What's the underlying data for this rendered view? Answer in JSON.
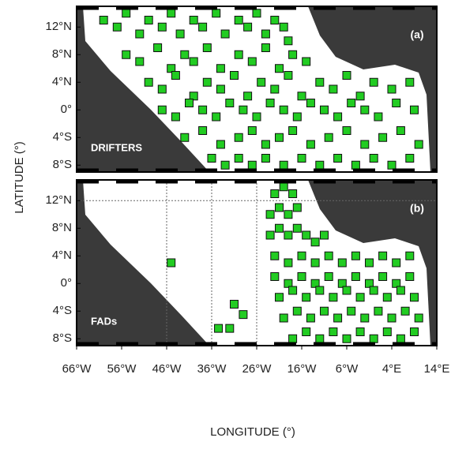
{
  "x_axis_label": "LONGITUDE (°)",
  "y_axis_label": "LATITUDE (°)",
  "xlim": [
    -66,
    14
  ],
  "ylim": [
    -9,
    15
  ],
  "xticks": [
    {
      "value": -66,
      "label": "66°W"
    },
    {
      "value": -56,
      "label": "56°W"
    },
    {
      "value": -46,
      "label": "46°W"
    },
    {
      "value": -36,
      "label": "36°W"
    },
    {
      "value": -26,
      "label": "26°W"
    },
    {
      "value": -16,
      "label": "16°W"
    },
    {
      "value": -6,
      "label": "6°W"
    },
    {
      "value": 4,
      "label": "4°E"
    },
    {
      "value": 14,
      "label": "14°E"
    }
  ],
  "yticks": [
    {
      "value": 12,
      "label": "12°N"
    },
    {
      "value": 8,
      "label": "8°N"
    },
    {
      "value": 4,
      "label": "4°N"
    },
    {
      "value": 0,
      "label": "0°"
    },
    {
      "value": -4,
      "label": "4°S"
    },
    {
      "value": -8,
      "label": "8°S"
    }
  ],
  "point_color": "#22cc22",
  "panels": [
    {
      "label": "(a)",
      "name": "DRIFTERS",
      "lon": [
        -60,
        -57,
        -55,
        -52,
        -50,
        -47,
        -45,
        -43,
        -40,
        -38,
        -35,
        -33,
        -30,
        -28,
        -26,
        -24,
        -22,
        -20,
        -19,
        -55,
        -52,
        -48,
        -45,
        -42,
        -40,
        -37,
        -34,
        -30,
        -27,
        -24,
        -21,
        -18,
        -15,
        -50,
        -47,
        -44,
        -40,
        -37,
        -34,
        -31,
        -28,
        -25,
        -22,
        -19,
        -16,
        -12,
        -9,
        -6,
        -3,
        0,
        4,
        8,
        -47,
        -44,
        -41,
        -38,
        -35,
        -32,
        -29,
        -26,
        -23,
        -20,
        -17,
        -14,
        -11,
        -8,
        -5,
        -2,
        1,
        5,
        9,
        -42,
        -38,
        -34,
        -30,
        -27,
        -24,
        -21,
        -18,
        -14,
        -10,
        -6,
        -2,
        2,
        6,
        10,
        -36,
        -33,
        -30,
        -27,
        -24,
        -20,
        -16,
        -12,
        -8,
        -4,
        0,
        4,
        8
      ],
      "lat": [
        13,
        12,
        14,
        11,
        13,
        12,
        14,
        11,
        13,
        12,
        14,
        11,
        13,
        12,
        14,
        11,
        13,
        12,
        10,
        8,
        7,
        9,
        6,
        8,
        7,
        9,
        6,
        8,
        7,
        9,
        6,
        8,
        7,
        4,
        3,
        5,
        2,
        4,
        3,
        5,
        2,
        4,
        3,
        5,
        2,
        4,
        3,
        5,
        2,
        4,
        3,
        4,
        0,
        -1,
        1,
        0,
        -1,
        1,
        0,
        -1,
        1,
        0,
        -1,
        1,
        0,
        -1,
        1,
        0,
        -1,
        1,
        0,
        -4,
        -3,
        -5,
        -4,
        -3,
        -5,
        -4,
        -3,
        -5,
        -4,
        -3,
        -5,
        -4,
        -3,
        -5,
        -7,
        -8,
        -7,
        -8,
        -7,
        -8,
        -7,
        -8,
        -7,
        -8,
        -7,
        -8,
        -7
      ]
    },
    {
      "label": "(b)",
      "name": "FADs",
      "grid_lines": {
        "lon": [
          -46,
          -36,
          -26
        ],
        "lat": [
          12
        ]
      },
      "lon": [
        -22,
        -20,
        -18,
        -23,
        -21,
        -19,
        -17,
        -23,
        -21,
        -19,
        -17,
        -15,
        -13,
        -11,
        -22,
        -19,
        -16,
        -13,
        -10,
        -7,
        -4,
        -1,
        2,
        5,
        8,
        -22,
        -19,
        -16,
        -13,
        -10,
        -7,
        -4,
        -1,
        2,
        5,
        8,
        -21,
        -18,
        -15,
        -12,
        -9,
        -6,
        -3,
        0,
        3,
        6,
        9,
        -20,
        -17,
        -14,
        -11,
        -8,
        -5,
        -2,
        1,
        4,
        7,
        10,
        -18,
        -15,
        -12,
        -9,
        -6,
        -3,
        0,
        3,
        6,
        9,
        -45,
        -31,
        -29,
        -32,
        -34.5
      ],
      "lat": [
        13,
        14,
        13,
        10,
        11,
        10,
        11,
        7,
        8,
        7,
        8,
        7,
        6,
        7,
        4,
        3,
        4,
        3,
        4,
        3,
        4,
        3,
        4,
        3,
        4,
        1,
        0,
        1,
        0,
        1,
        0,
        1,
        0,
        1,
        0,
        1,
        -2,
        -1,
        -2,
        -1,
        -2,
        -1,
        -2,
        -1,
        -2,
        -1,
        -2,
        -5,
        -4,
        -5,
        -4,
        -5,
        -4,
        -5,
        -4,
        -5,
        -4,
        -5,
        -8,
        -7,
        -8,
        -7,
        -8,
        -7,
        -8,
        -7,
        -8,
        -7,
        3,
        -3,
        -4.5,
        -6.5,
        -6.5
      ]
    }
  ]
}
